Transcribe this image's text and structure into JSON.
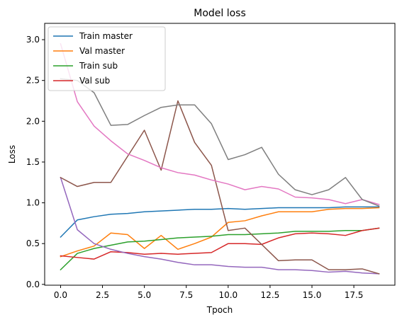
{
  "chart_data": {
    "type": "line",
    "title": "Model loss",
    "xlabel": "Tpoch",
    "ylabel": "Loss",
    "xlim": [
      -0.95,
      19.95
    ],
    "ylim": [
      -0.01,
      3.2
    ],
    "xticks": [
      0.0,
      2.5,
      5.0,
      7.5,
      10.0,
      12.5,
      15.0,
      17.5
    ],
    "xtick_labels": [
      "0.0",
      "2.5",
      "5.0",
      "7.5",
      "10.0",
      "12.5",
      "15.0",
      "17.5"
    ],
    "yticks": [
      0.0,
      0.5,
      1.0,
      1.5,
      2.0,
      2.5,
      3.0
    ],
    "ytick_labels": [
      "0.0",
      "0.5",
      "1.0",
      "1.5",
      "2.0",
      "2.5",
      "3.0"
    ],
    "legend_position": "top-left",
    "x": [
      0,
      1,
      2,
      3,
      4,
      5,
      6,
      7,
      8,
      9,
      10,
      11,
      12,
      13,
      14,
      15,
      16,
      17,
      18,
      19
    ],
    "series": [
      {
        "name": "Train master",
        "color": "#1f77b4",
        "in_legend": true,
        "values": [
          0.58,
          0.79,
          0.83,
          0.86,
          0.87,
          0.89,
          0.9,
          0.91,
          0.92,
          0.92,
          0.93,
          0.92,
          0.93,
          0.94,
          0.94,
          0.94,
          0.94,
          0.95,
          0.95,
          0.95
        ]
      },
      {
        "name": "Val master",
        "color": "#ff7f0e",
        "in_legend": true,
        "values": [
          0.34,
          0.41,
          0.47,
          0.63,
          0.61,
          0.44,
          0.6,
          0.43,
          0.5,
          0.58,
          0.76,
          0.78,
          0.84,
          0.89,
          0.89,
          0.89,
          0.92,
          0.93,
          0.93,
          0.94
        ]
      },
      {
        "name": "Train sub",
        "color": "#2ca02c",
        "in_legend": true,
        "values": [
          0.18,
          0.38,
          0.44,
          0.48,
          0.52,
          0.53,
          0.55,
          0.57,
          0.58,
          0.59,
          0.61,
          0.61,
          0.62,
          0.63,
          0.65,
          0.65,
          0.65,
          0.66,
          0.66,
          0.69
        ]
      },
      {
        "name": "Val sub",
        "color": "#d62728",
        "in_legend": true,
        "values": [
          0.35,
          0.33,
          0.31,
          0.4,
          0.39,
          0.37,
          0.38,
          0.37,
          0.38,
          0.39,
          0.5,
          0.5,
          0.49,
          0.57,
          0.62,
          0.63,
          0.62,
          0.6,
          0.66,
          0.69
        ]
      },
      {
        "name": "",
        "color": "#9467bd",
        "in_legend": false,
        "values": [
          1.31,
          0.67,
          0.5,
          0.43,
          0.38,
          0.34,
          0.31,
          0.27,
          0.24,
          0.24,
          0.22,
          0.21,
          0.21,
          0.18,
          0.18,
          0.17,
          0.15,
          0.16,
          0.14,
          0.13
        ]
      },
      {
        "name": "",
        "color": "#8c564b",
        "in_legend": false,
        "values": [
          1.31,
          1.2,
          1.25,
          1.25,
          1.57,
          1.89,
          1.4,
          2.25,
          1.74,
          1.46,
          0.66,
          0.69,
          0.49,
          0.29,
          0.3,
          0.3,
          0.18,
          0.18,
          0.19,
          0.13
        ]
      },
      {
        "name": "",
        "color": "#e377c2",
        "in_legend": false,
        "values": [
          2.95,
          2.24,
          1.94,
          1.76,
          1.6,
          1.52,
          1.43,
          1.37,
          1.34,
          1.28,
          1.23,
          1.16,
          1.2,
          1.17,
          1.07,
          1.06,
          1.04,
          0.99,
          1.04,
          0.98
        ]
      },
      {
        "name": "",
        "color": "#7f7f7f",
        "in_legend": false,
        "values": [
          2.52,
          2.5,
          2.35,
          1.95,
          1.96,
          2.07,
          2.17,
          2.2,
          2.2,
          1.97,
          1.53,
          1.59,
          1.68,
          1.35,
          1.16,
          1.1,
          1.16,
          1.31,
          1.04,
          0.96
        ]
      }
    ]
  }
}
